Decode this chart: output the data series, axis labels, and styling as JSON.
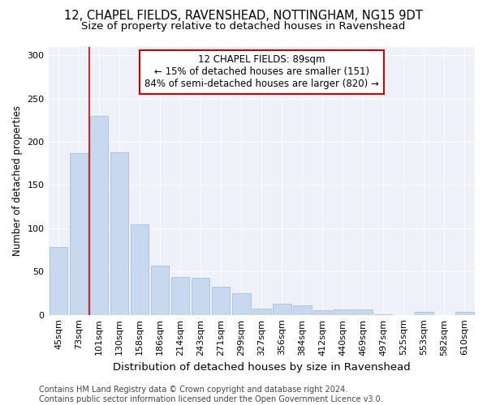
{
  "title1": "12, CHAPEL FIELDS, RAVENSHEAD, NOTTINGHAM, NG15 9DT",
  "title2": "Size of property relative to detached houses in Ravenshead",
  "xlabel": "Distribution of detached houses by size in Ravenshead",
  "ylabel": "Number of detached properties",
  "categories": [
    "45sqm",
    "73sqm",
    "101sqm",
    "130sqm",
    "158sqm",
    "186sqm",
    "214sqm",
    "243sqm",
    "271sqm",
    "299sqm",
    "327sqm",
    "356sqm",
    "384sqm",
    "412sqm",
    "440sqm",
    "469sqm",
    "497sqm",
    "525sqm",
    "553sqm",
    "582sqm",
    "610sqm"
  ],
  "values": [
    78,
    187,
    230,
    188,
    105,
    57,
    44,
    43,
    32,
    25,
    7,
    13,
    11,
    5,
    6,
    6,
    1,
    0,
    3,
    0,
    3
  ],
  "bar_color": "#c8d8ee",
  "bar_edge_color": "#a8c0de",
  "vline_x": 2.0,
  "vline_color": "#cc0000",
  "annotation_text": "12 CHAPEL FIELDS: 89sqm\n← 15% of detached houses are smaller (151)\n84% of semi-detached houses are larger (820) →",
  "annotation_box_facecolor": "#ffffff",
  "annotation_box_edgecolor": "#cc0000",
  "ylim": [
    0,
    310
  ],
  "yticks": [
    0,
    50,
    100,
    150,
    200,
    250,
    300
  ],
  "bg_color": "#ffffff",
  "plot_bg_color": "#eef2f8",
  "title1_fontsize": 10.5,
  "title2_fontsize": 9.5,
  "xlabel_fontsize": 9.5,
  "ylabel_fontsize": 8.5,
  "tick_fontsize": 8,
  "annot_fontsize": 8.5,
  "footer_fontsize": 7,
  "footer": "Contains HM Land Registry data © Crown copyright and database right 2024.\nContains public sector information licensed under the Open Government Licence v3.0."
}
